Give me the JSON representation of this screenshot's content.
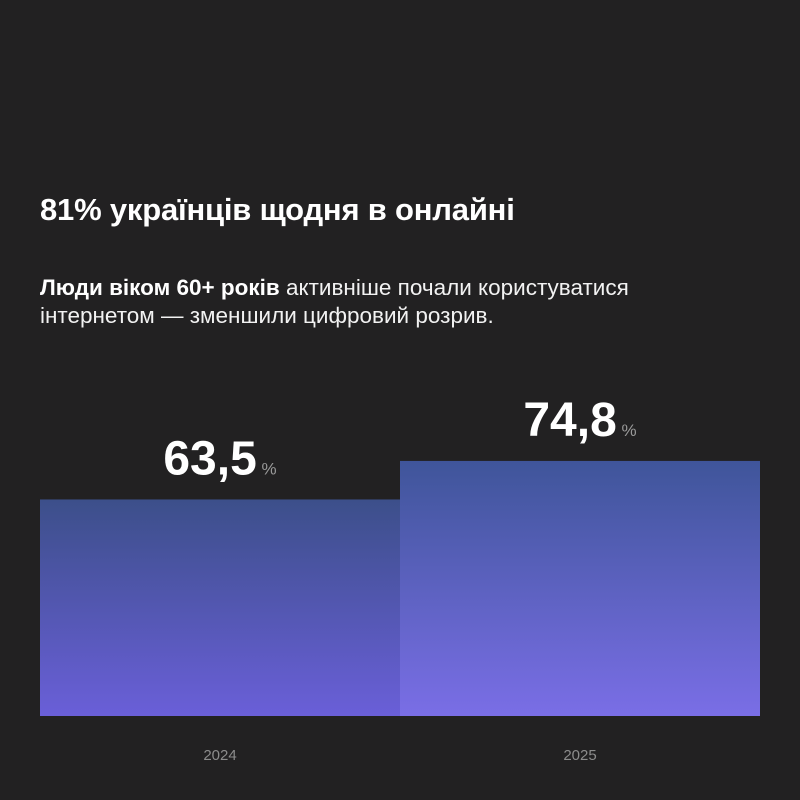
{
  "header": {
    "title": "81% українців щодня в онлайні",
    "subtitle_bold": "Люди віком 60+ років",
    "subtitle_rest": " активніше почали користуватися інтернетом — зменшили цифровий розрив."
  },
  "chart_data": {
    "type": "bar",
    "categories": [
      "2024",
      "2025"
    ],
    "values": [
      63.5,
      74.8
    ],
    "value_labels": [
      "63,5",
      "74,8"
    ],
    "unit": "%",
    "title": "",
    "xlabel": "",
    "ylabel": "",
    "ylim": [
      0,
      100
    ],
    "grid": false,
    "legend": "none",
    "colors": {
      "bar_top": "#3c4f8a",
      "bar_bottom": "#6a5fd8",
      "bar2_top": "#3f559a",
      "bar2_bottom": "#7a6ee6",
      "background": "#222122"
    }
  }
}
